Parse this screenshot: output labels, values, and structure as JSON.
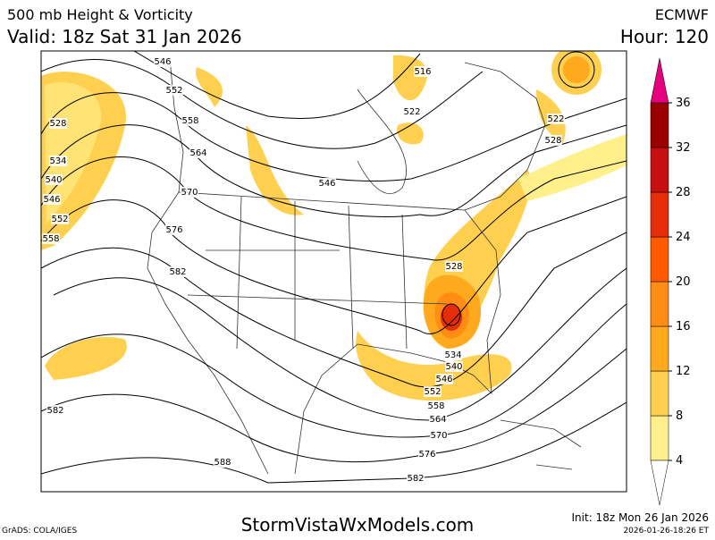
{
  "header": {
    "title": "500 mb Height & Vorticity",
    "valid": "Valid: 18z Sat 31 Jan 2026",
    "model": "ECMWF",
    "hour": "Hour: 120"
  },
  "contour_labels": [
    "546",
    "552",
    "558",
    "564",
    "570",
    "576",
    "582",
    "528",
    "534",
    "540",
    "546",
    "552",
    "558",
    "516",
    "522",
    "522",
    "528",
    "546",
    "528",
    "534",
    "540",
    "546",
    "552",
    "558",
    "564",
    "570",
    "576",
    "582",
    "582",
    "588"
  ],
  "colorbar": {
    "ticks": [
      4,
      8,
      12,
      16,
      20,
      24,
      28,
      32,
      36
    ],
    "colors": [
      "#fff08c",
      "#ffd050",
      "#ffaa1e",
      "#ff8c14",
      "#ff5a00",
      "#e62d0a",
      "#c80f0f",
      "#9b0000"
    ],
    "over_color": "#e6007e"
  },
  "footer": {
    "site": "StormVistaWxModels.com",
    "init": "Init: 18z Mon 26 Jan 2026",
    "stamp": "2026-01-26-18:26 ET",
    "credit": "GrADS: COLA/IGES"
  }
}
